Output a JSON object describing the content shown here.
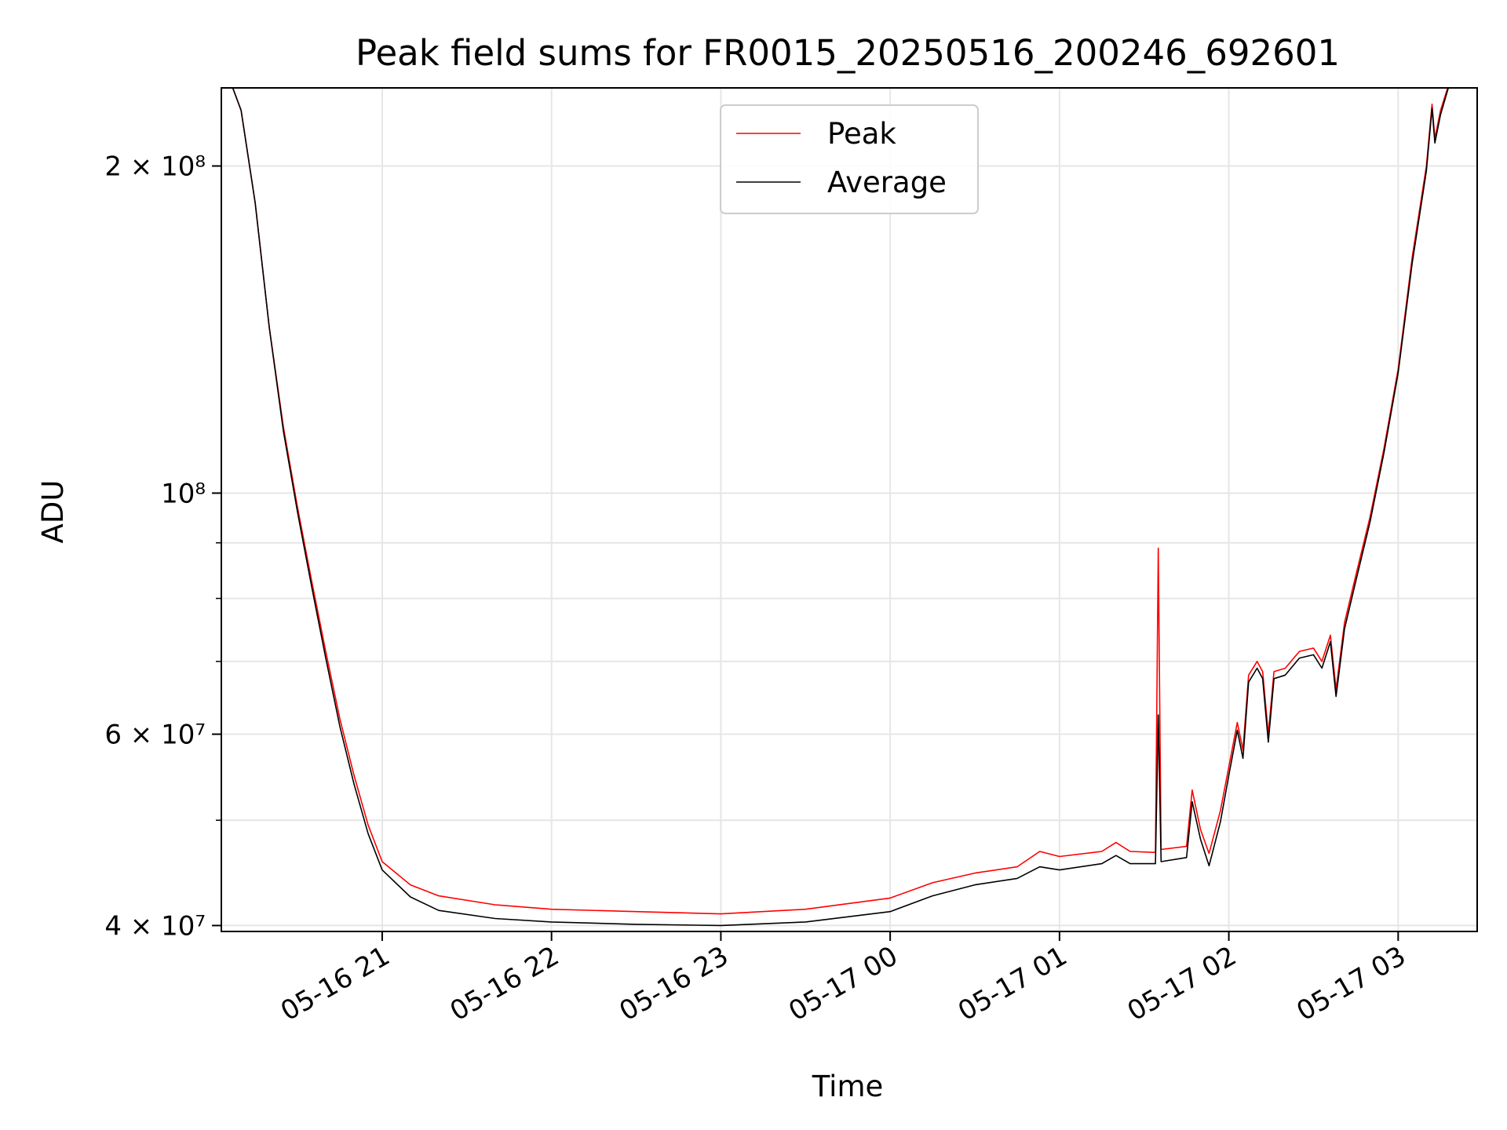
{
  "chart_data": {
    "type": "line",
    "title": "Peak field sums for FR0015_20250516_200246_692601",
    "xlabel": "Time",
    "ylabel": "ADU",
    "yscale": "log",
    "ylim": [
      39500000,
      236000000
    ],
    "xlim": [
      "2025-05-16 20:03",
      "2025-05-17 03:28"
    ],
    "grid": true,
    "legend_position": "top-center",
    "x_ticks": [
      {
        "x": "2025-05-16 21:00",
        "label": "05-16 21"
      },
      {
        "x": "2025-05-16 22:00",
        "label": "05-16 22"
      },
      {
        "x": "2025-05-16 23:00",
        "label": "05-16 23"
      },
      {
        "x": "2025-05-17 00:00",
        "label": "05-17 00"
      },
      {
        "x": "2025-05-17 01:00",
        "label": "05-17 01"
      },
      {
        "x": "2025-05-17 02:00",
        "label": "05-17 02"
      },
      {
        "x": "2025-05-17 03:00",
        "label": "05-17 03"
      }
    ],
    "y_ticks": [
      {
        "value": 40000000,
        "label": "4 × 10⁷"
      },
      {
        "value": 60000000,
        "label": "6 × 10⁷"
      },
      {
        "value": 100000000,
        "label": "10⁸"
      },
      {
        "value": 200000000,
        "label": "2 × 10⁸"
      }
    ],
    "y_minor_ticks": [
      50000000,
      70000000,
      80000000,
      90000000
    ],
    "series": [
      {
        "name": "Peak",
        "color": "#ff0000",
        "points": [
          [
            "2025-05-16 20:06",
            240000000
          ],
          [
            "2025-05-16 20:10",
            225000000
          ],
          [
            "2025-05-16 20:15",
            185000000
          ],
          [
            "2025-05-16 20:20",
            142000000
          ],
          [
            "2025-05-16 20:25",
            115000000
          ],
          [
            "2025-05-16 20:30",
            97000000
          ],
          [
            "2025-05-16 20:35",
            83000000
          ],
          [
            "2025-05-16 20:40",
            71500000
          ],
          [
            "2025-05-16 20:45",
            62000000
          ],
          [
            "2025-05-16 20:50",
            55000000
          ],
          [
            "2025-05-16 20:55",
            49500000
          ],
          [
            "2025-05-16 21:00",
            45800000
          ],
          [
            "2025-05-16 21:10",
            43600000
          ],
          [
            "2025-05-16 21:20",
            42600000
          ],
          [
            "2025-05-16 21:40",
            41800000
          ],
          [
            "2025-05-16 22:00",
            41400000
          ],
          [
            "2025-05-16 22:30",
            41200000
          ],
          [
            "2025-05-16 23:00",
            41000000
          ],
          [
            "2025-05-16 23:30",
            41400000
          ],
          [
            "2025-05-17 00:00",
            42400000
          ],
          [
            "2025-05-17 00:15",
            43800000
          ],
          [
            "2025-05-17 00:30",
            44700000
          ],
          [
            "2025-05-17 00:45",
            45300000
          ],
          [
            "2025-05-17 00:53",
            46800000
          ],
          [
            "2025-05-17 01:00",
            46300000
          ],
          [
            "2025-05-17 01:15",
            46800000
          ],
          [
            "2025-05-17 01:20",
            47700000
          ],
          [
            "2025-05-17 01:25",
            46800000
          ],
          [
            "2025-05-17 01:34",
            46700000
          ],
          [
            "2025-05-17 01:35",
            89000000
          ],
          [
            "2025-05-17 01:36",
            47000000
          ],
          [
            "2025-05-17 01:45",
            47300000
          ],
          [
            "2025-05-17 01:47",
            53300000
          ],
          [
            "2025-05-17 01:50",
            49000000
          ],
          [
            "2025-05-17 01:53",
            46600000
          ],
          [
            "2025-05-17 01:57",
            51000000
          ],
          [
            "2025-05-17 02:00",
            56000000
          ],
          [
            "2025-05-17 02:03",
            61500000
          ],
          [
            "2025-05-17 02:05",
            58000000
          ],
          [
            "2025-05-17 02:07",
            68000000
          ],
          [
            "2025-05-17 02:10",
            70000000
          ],
          [
            "2025-05-17 02:12",
            68500000
          ],
          [
            "2025-05-17 02:14",
            60000000
          ],
          [
            "2025-05-17 02:16",
            68500000
          ],
          [
            "2025-05-17 02:20",
            69000000
          ],
          [
            "2025-05-17 02:25",
            71500000
          ],
          [
            "2025-05-17 02:30",
            72000000
          ],
          [
            "2025-05-17 02:33",
            70000000
          ],
          [
            "2025-05-17 02:36",
            74000000
          ],
          [
            "2025-05-17 02:38",
            66000000
          ],
          [
            "2025-05-17 02:41",
            76000000
          ],
          [
            "2025-05-17 02:45",
            84000000
          ],
          [
            "2025-05-17 02:50",
            95000000
          ],
          [
            "2025-05-17 02:55",
            110000000
          ],
          [
            "2025-05-17 03:00",
            130000000
          ],
          [
            "2025-05-17 03:05",
            165000000
          ],
          [
            "2025-05-17 03:10",
            200000000
          ],
          [
            "2025-05-17 03:12",
            228000000
          ],
          [
            "2025-05-17 03:13",
            212000000
          ],
          [
            "2025-05-17 03:15",
            225000000
          ],
          [
            "2025-05-17 03:18",
            238000000
          ]
        ]
      },
      {
        "name": "Average",
        "color": "#000000",
        "points": [
          [
            "2025-05-16 20:06",
            240000000
          ],
          [
            "2025-05-16 20:10",
            225000000
          ],
          [
            "2025-05-16 20:15",
            185000000
          ],
          [
            "2025-05-16 20:20",
            142000000
          ],
          [
            "2025-05-16 20:25",
            114000000
          ],
          [
            "2025-05-16 20:30",
            96000000
          ],
          [
            "2025-05-16 20:35",
            82000000
          ],
          [
            "2025-05-16 20:40",
            70500000
          ],
          [
            "2025-05-16 20:45",
            61000000
          ],
          [
            "2025-05-16 20:50",
            54000000
          ],
          [
            "2025-05-16 20:55",
            48600000
          ],
          [
            "2025-05-16 21:00",
            45000000
          ],
          [
            "2025-05-16 21:10",
            42500000
          ],
          [
            "2025-05-16 21:20",
            41300000
          ],
          [
            "2025-05-16 21:40",
            40600000
          ],
          [
            "2025-05-16 22:00",
            40300000
          ],
          [
            "2025-05-16 22:30",
            40100000
          ],
          [
            "2025-05-16 23:00",
            40000000
          ],
          [
            "2025-05-16 23:30",
            40300000
          ],
          [
            "2025-05-17 00:00",
            41200000
          ],
          [
            "2025-05-17 00:15",
            42600000
          ],
          [
            "2025-05-17 00:30",
            43600000
          ],
          [
            "2025-05-17 00:45",
            44200000
          ],
          [
            "2025-05-17 00:53",
            45300000
          ],
          [
            "2025-05-17 01:00",
            45000000
          ],
          [
            "2025-05-17 01:15",
            45600000
          ],
          [
            "2025-05-17 01:20",
            46400000
          ],
          [
            "2025-05-17 01:25",
            45600000
          ],
          [
            "2025-05-17 01:34",
            45600000
          ],
          [
            "2025-05-17 01:35",
            62500000
          ],
          [
            "2025-05-17 01:36",
            45800000
          ],
          [
            "2025-05-17 01:45",
            46200000
          ],
          [
            "2025-05-17 01:47",
            52000000
          ],
          [
            "2025-05-17 01:50",
            48000000
          ],
          [
            "2025-05-17 01:53",
            45400000
          ],
          [
            "2025-05-17 01:57",
            49800000
          ],
          [
            "2025-05-17 02:00",
            55000000
          ],
          [
            "2025-05-17 02:03",
            60500000
          ],
          [
            "2025-05-17 02:05",
            57000000
          ],
          [
            "2025-05-17 02:07",
            67000000
          ],
          [
            "2025-05-17 02:10",
            69000000
          ],
          [
            "2025-05-17 02:12",
            67500000
          ],
          [
            "2025-05-17 02:14",
            59000000
          ],
          [
            "2025-05-17 02:16",
            67500000
          ],
          [
            "2025-05-17 02:20",
            68000000
          ],
          [
            "2025-05-17 02:25",
            70500000
          ],
          [
            "2025-05-17 02:30",
            71000000
          ],
          [
            "2025-05-17 02:33",
            69000000
          ],
          [
            "2025-05-17 02:36",
            73000000
          ],
          [
            "2025-05-17 02:38",
            65000000
          ],
          [
            "2025-05-17 02:41",
            75000000
          ],
          [
            "2025-05-17 02:45",
            83000000
          ],
          [
            "2025-05-17 02:50",
            94000000
          ],
          [
            "2025-05-17 02:55",
            109000000
          ],
          [
            "2025-05-17 03:00",
            129000000
          ],
          [
            "2025-05-17 03:05",
            163000000
          ],
          [
            "2025-05-17 03:10",
            198000000
          ],
          [
            "2025-05-17 03:12",
            226000000
          ],
          [
            "2025-05-17 03:13",
            210000000
          ],
          [
            "2025-05-17 03:15",
            223000000
          ],
          [
            "2025-05-17 03:18",
            237000000
          ]
        ]
      }
    ]
  }
}
